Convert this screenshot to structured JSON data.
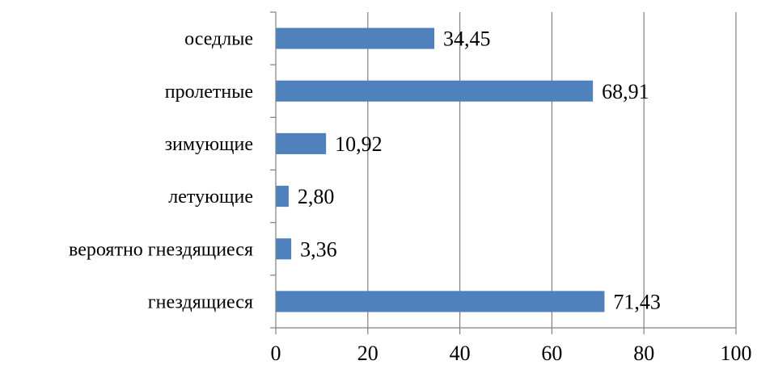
{
  "chart_data": {
    "type": "bar",
    "orientation": "horizontal",
    "categories": [
      "оседлые",
      "пролетные",
      "зимующие",
      "летующие",
      "вероятно гнездящиеся",
      "гнездящиеся"
    ],
    "values": [
      34.45,
      68.91,
      10.92,
      2.8,
      3.36,
      71.43
    ],
    "value_labels": [
      "34,45",
      "68,91",
      "10,92",
      "2,80",
      "3,36",
      "71,43"
    ],
    "x_ticks": [
      "0",
      "20",
      "40",
      "60",
      "80",
      "100"
    ],
    "xlim": [
      0,
      100
    ],
    "title": "",
    "xlabel": "",
    "ylabel": "",
    "grid": "vertical",
    "legend": "none",
    "bar_color": "#4F81BD",
    "grid_color": "#808080"
  }
}
